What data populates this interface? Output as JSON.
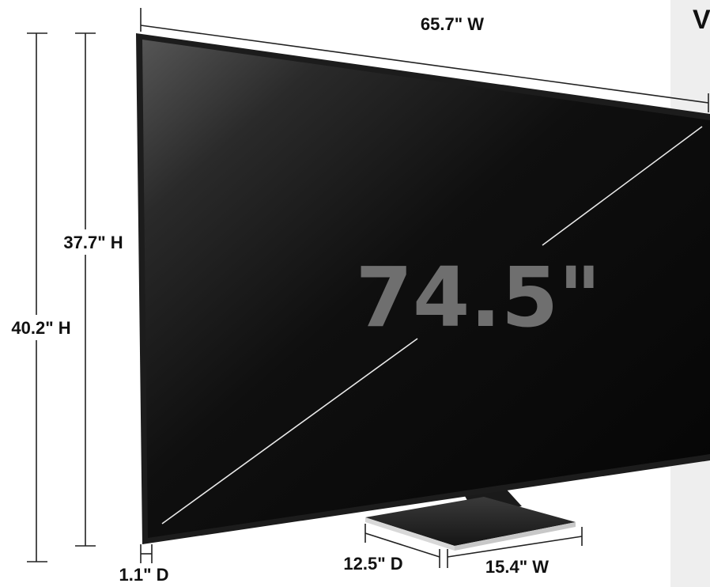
{
  "dimensions": {
    "width_overall": "65.7\" W",
    "height_panel": "37.7\" H",
    "height_with_stand": "40.2\" H",
    "depth_panel": "1.1\" D",
    "stand_depth": "12.5\" D",
    "stand_width": "15.4\" W",
    "diagonal": "74.5\""
  },
  "corner_text": "V",
  "colors": {
    "screen_dark": "#0a0a0a",
    "screen_glare": "#5a5a5a",
    "bezel": "#1c1c1c",
    "side_panel": "#eeeeee",
    "diagonal_text": "#6f6f6f",
    "stand_top": "#2a2a2a",
    "stand_base": "#e6e6e6"
  }
}
